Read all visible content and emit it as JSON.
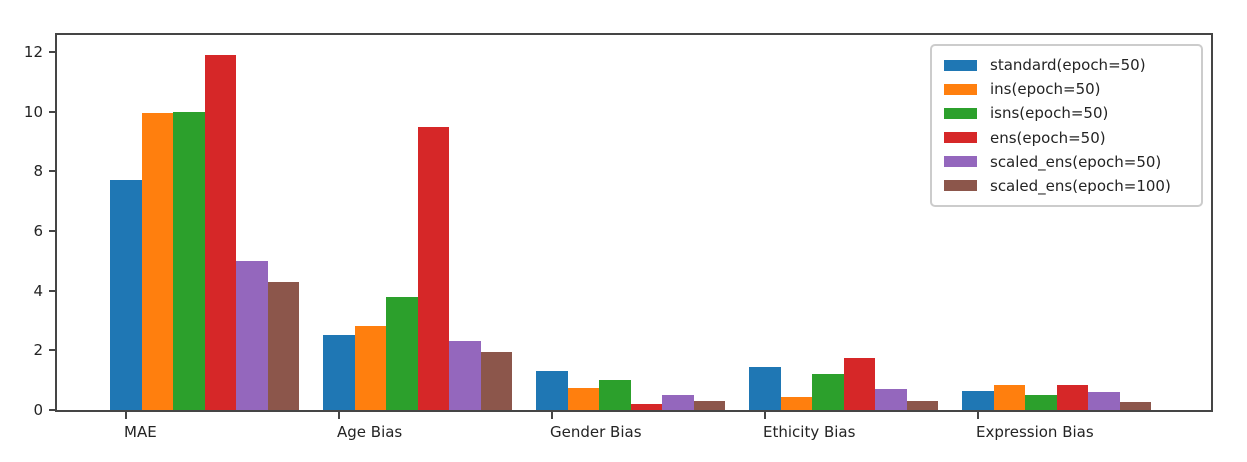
{
  "chart_data": {
    "type": "bar",
    "title": "",
    "xlabel": "",
    "ylabel": "",
    "grid": false,
    "background": "#ffffff",
    "ylim": [
      0,
      12.57
    ],
    "yticks": [
      0,
      2,
      4,
      6,
      8,
      10,
      12
    ],
    "legend_position": "upper right",
    "categories": [
      "MAE",
      "Age Bias",
      "Gender Bias",
      "Ethicity Bias",
      "Expression Bias"
    ],
    "series": [
      {
        "name": "standard(epoch=50)",
        "color": "#1f77b4",
        "values": [
          7.7,
          2.5,
          1.3,
          1.45,
          0.65
        ]
      },
      {
        "name": "ins(epoch=50)",
        "color": "#ff7f0e",
        "values": [
          9.95,
          2.8,
          0.75,
          0.45,
          0.85
        ]
      },
      {
        "name": "isns(epoch=50)",
        "color": "#2ca02c",
        "values": [
          10.0,
          3.8,
          1.0,
          1.2,
          0.5
        ]
      },
      {
        "name": "ens(epoch=50)",
        "color": "#d62728",
        "values": [
          11.9,
          9.5,
          0.2,
          1.75,
          0.85
        ]
      },
      {
        "name": "scaled_ens(epoch=50)",
        "color": "#9467bd",
        "values": [
          5.0,
          2.3,
          0.5,
          0.7,
          0.6
        ]
      },
      {
        "name": "scaled_ens(epoch=100)",
        "color": "#8c564b",
        "values": [
          4.3,
          1.95,
          0.3,
          0.3,
          0.28
        ]
      }
    ]
  }
}
